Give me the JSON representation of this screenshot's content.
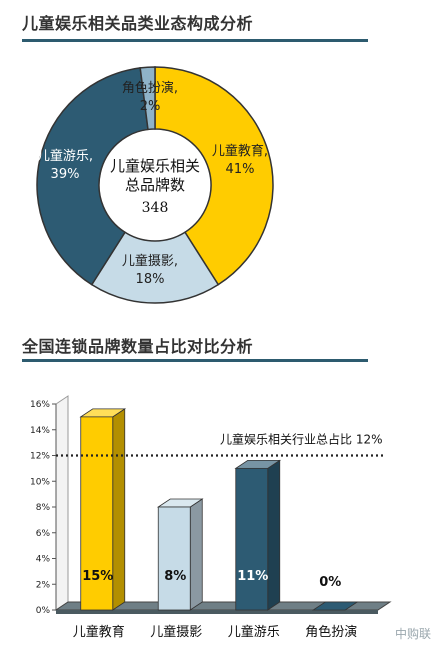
{
  "sections": {
    "donut_title": "儿童娱乐相关品类业态构成分析",
    "bar_title": "全国连锁品牌数量占比对比分析"
  },
  "watermark": "中购联",
  "chart_data": [
    {
      "type": "pie",
      "style": "donut",
      "center_label_line1": "儿童娱乐相关",
      "center_label_line2": "总品牌数",
      "center_value": "348",
      "slices": [
        {
          "label": "儿童教育",
          "value": 41,
          "display": "41%",
          "color": "#ffcc00"
        },
        {
          "label": "儿童摄影",
          "value": 18,
          "display": "18%",
          "color": "#c6dbe7"
        },
        {
          "label": "儿童游乐",
          "value": 39,
          "display": "39%",
          "color": "#2d5b73"
        },
        {
          "label": "角色扮演",
          "value": 2,
          "display": "2%",
          "color": "#8fb3c8"
        }
      ]
    },
    {
      "type": "bar",
      "style": "3d-column",
      "categories": [
        "儿童教育",
        "儿童摄影",
        "儿童游乐",
        "角色扮演"
      ],
      "values": [
        15,
        8,
        11,
        0
      ],
      "value_labels": [
        "15%",
        "8%",
        "11%",
        "0%"
      ],
      "colors": [
        "#ffcc00",
        "#c6dbe7",
        "#2d5b73",
        "#2d5b73"
      ],
      "ylim": [
        0,
        16
      ],
      "yticks": [
        "0%",
        "2%",
        "4%",
        "6%",
        "8%",
        "10%",
        "12%",
        "14%",
        "16%"
      ],
      "reference_line": {
        "value": 12,
        "label": "儿童娱乐相关行业总占比 12%"
      }
    }
  ]
}
